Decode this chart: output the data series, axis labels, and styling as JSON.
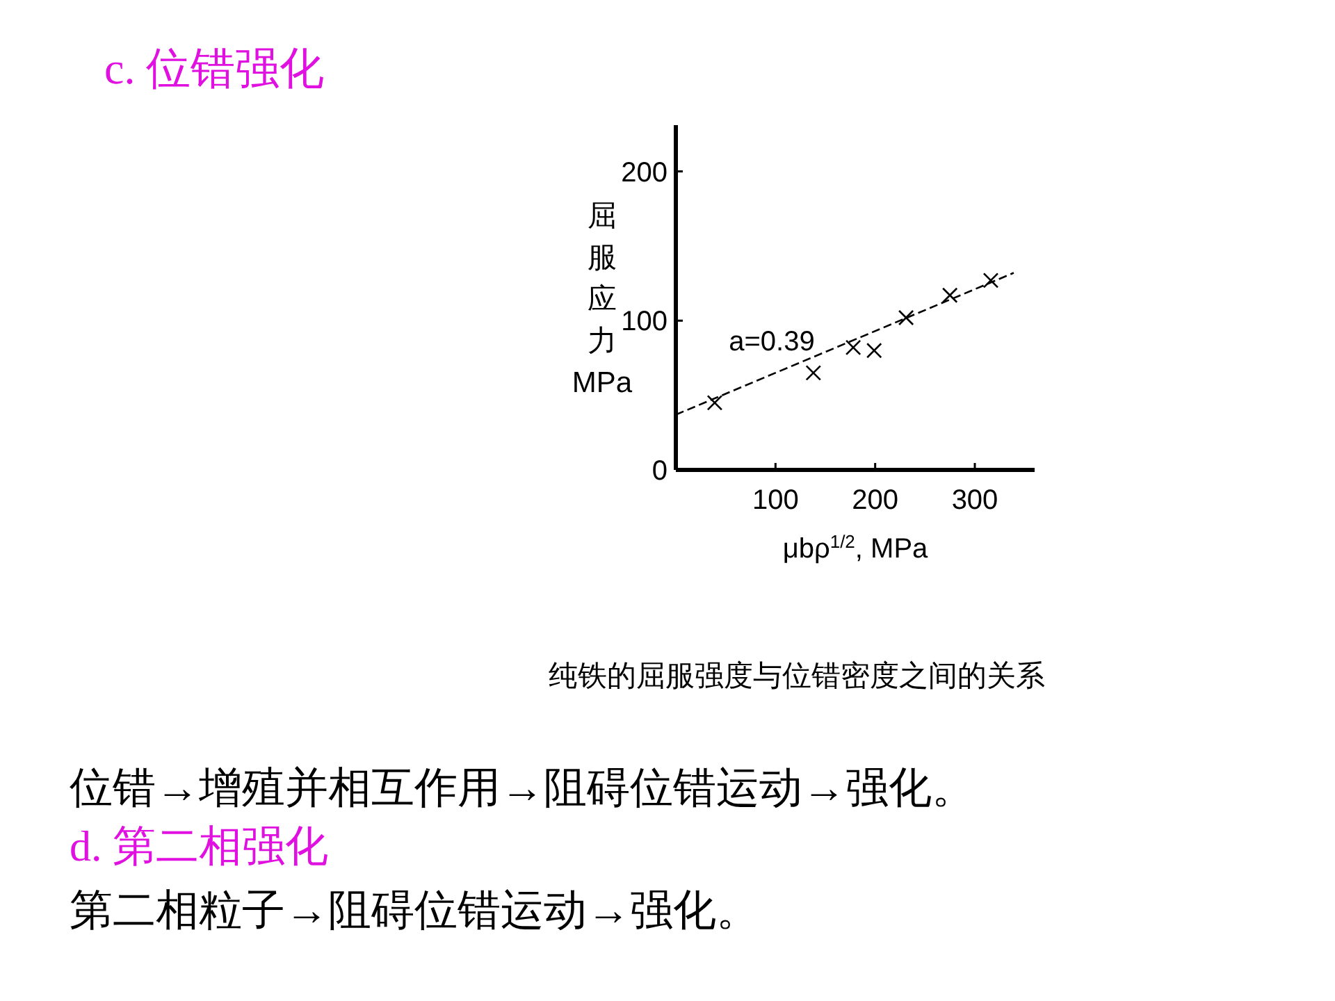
{
  "chart_data": {
    "type": "scatter",
    "title": "c. 位错强化",
    "subtitle": "纯铁的屈服强度与位错密度之间的关系",
    "xlabel": "μbρ$^{1/2}$, MPa",
    "ylabel": "屈服应力\nMPa",
    "series": [
      {
        "color": "#000000",
        "marker": "cross",
        "x": [
          39,
          138,
          178,
          199,
          231,
          275,
          316
        ],
        "values": [
          45,
          65,
          82,
          80,
          102,
          117,
          127
        ]
      },
      {
        "type": "line",
        "color": "#000000",
        "line_style": "dashed",
        "marker": "none",
        "x": [
          0,
          339
        ],
        "values": [
          37,
          132
        ]
      }
    ],
    "annotations": [
      "a=0.39",
      "位错→增殖并相互作用→阻碍位错运动→强化。",
      "d.  第二相强化",
      "第二相粒子→阻碍位错运动→强化。"
    ],
    "xlim": [
      0,
      360
    ],
    "ylim": [
      0,
      231
    ],
    "xticks": [
      100,
      200,
      300
    ],
    "yticks": [
      0,
      100,
      200
    ],
    "grid": false
  }
}
